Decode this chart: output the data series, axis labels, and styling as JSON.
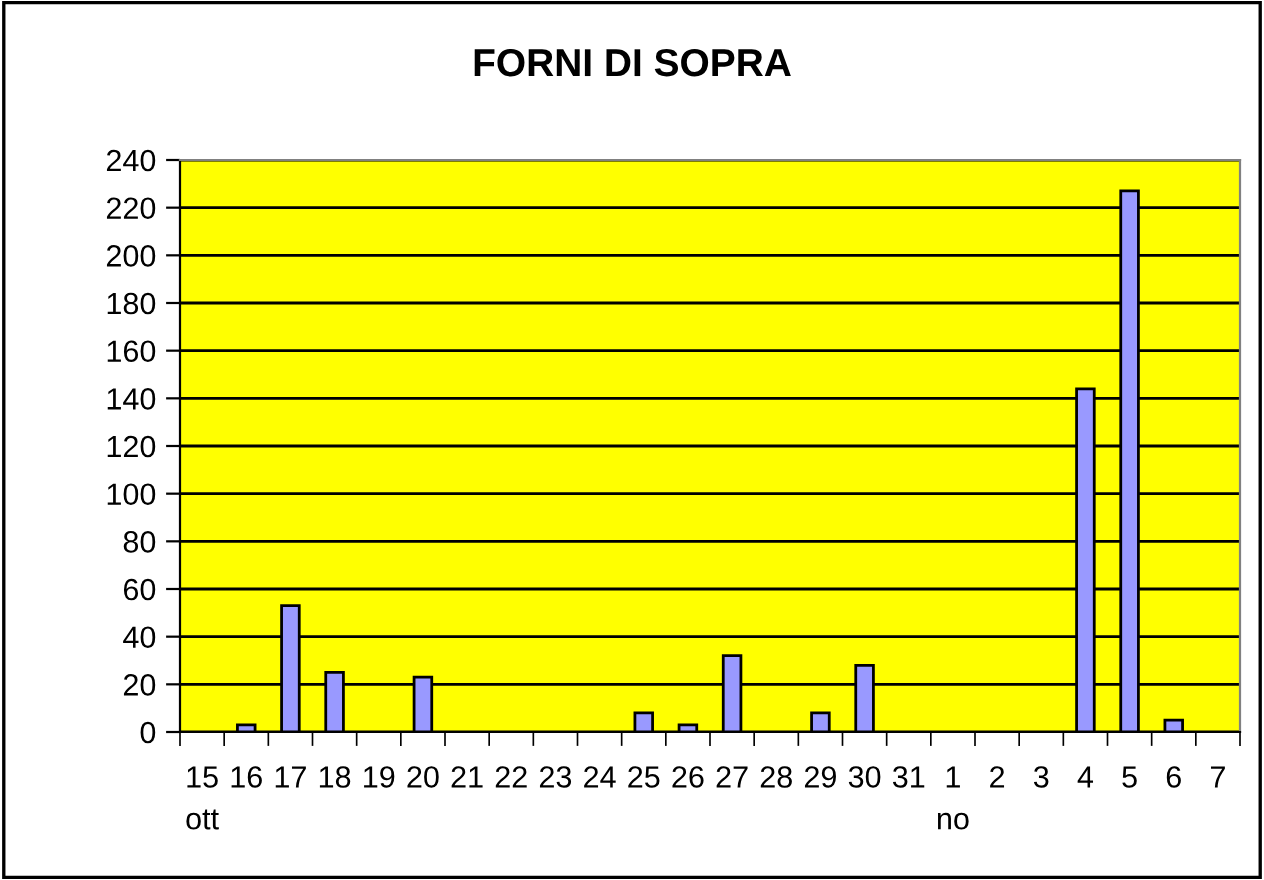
{
  "chart_data": {
    "type": "bar",
    "title": "FORNI DI SOPRA",
    "categories": [
      "15\nott",
      "16",
      "17",
      "18",
      "19",
      "20",
      "21",
      "22",
      "23",
      "24",
      "25",
      "26",
      "27",
      "28",
      "29",
      "30",
      "31",
      "1\nno",
      "2",
      "3",
      "4",
      "5",
      "6",
      "7"
    ],
    "values": [
      null,
      3,
      53,
      25,
      null,
      23,
      null,
      null,
      null,
      null,
      8,
      3,
      32,
      null,
      8,
      28,
      null,
      null,
      null,
      null,
      144,
      227,
      5,
      null
    ],
    "color": "#9999ff",
    "ylim": [
      0,
      240
    ],
    "yticks": [
      0,
      20,
      40,
      60,
      80,
      100,
      120,
      140,
      160,
      180,
      200,
      220,
      240
    ],
    "grid": "y",
    "legend": false
  }
}
